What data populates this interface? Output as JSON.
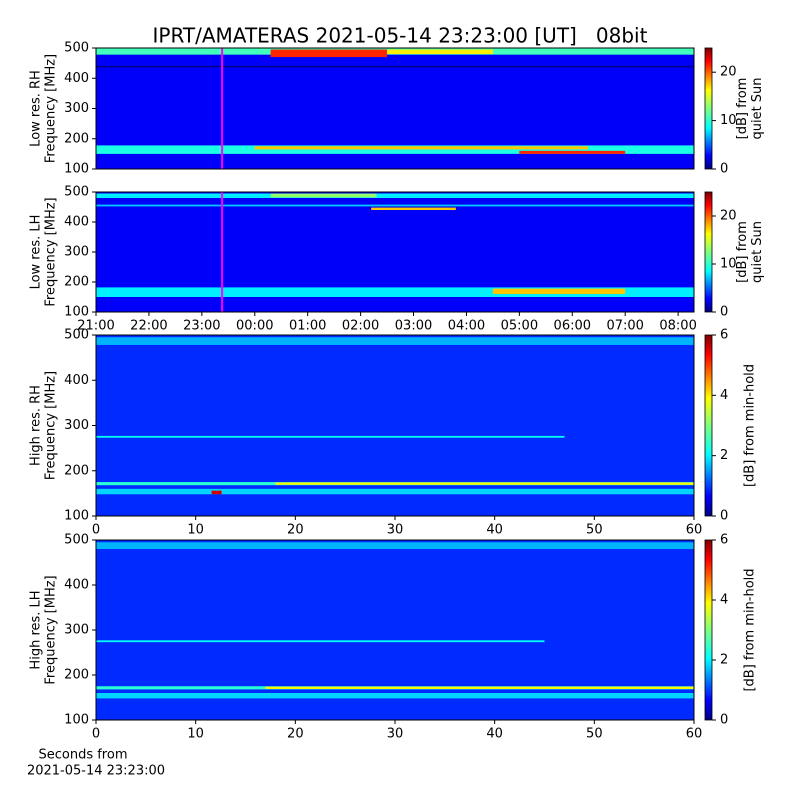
{
  "title": "IPRT/AMATERAS 2021-05-14 23:23:00 [UT]   08bit",
  "chart_data": [
    {
      "type": "heatmap",
      "ylabel": [
        "Low res. RH",
        "Frequency [MHz]"
      ],
      "cbar_label": [
        "[dB] from",
        "quiet Sun"
      ],
      "xlim": [
        21,
        32.3
      ],
      "ylim": [
        100,
        500
      ],
      "yticks": [
        100,
        200,
        300,
        400,
        500
      ],
      "clim": [
        0,
        25
      ],
      "cticks": [
        0,
        10,
        20
      ],
      "background": 3,
      "marker": 23.383,
      "marker_color": "#ff00ff",
      "bands": [
        {
          "x": [
            21,
            32.3
          ],
          "y": [
            478,
            500
          ],
          "value": 11
        },
        {
          "x": [
            24.3,
            26.5
          ],
          "y": [
            470,
            495
          ],
          "value": 21
        },
        {
          "x": [
            26.5,
            28.5
          ],
          "y": [
            480,
            495
          ],
          "value": 16
        },
        {
          "x": [
            21,
            32.3
          ],
          "y": [
            436,
            441
          ],
          "value": 0
        },
        {
          "x": [
            21,
            32.3
          ],
          "y": [
            150,
            178
          ],
          "value": 10
        },
        {
          "x": [
            24,
            30.3
          ],
          "y": [
            165,
            175
          ],
          "value": 17
        },
        {
          "x": [
            29,
            31
          ],
          "y": [
            150,
            160
          ],
          "value": 21
        }
      ]
    },
    {
      "type": "heatmap",
      "ylabel": [
        "Low res. LH",
        "Frequency [MHz]"
      ],
      "cbar_label": [
        "[dB] from",
        "quiet Sun"
      ],
      "xlim": [
        21,
        32.3
      ],
      "xticks": [
        {
          "value": 21,
          "label": "21:00"
        },
        {
          "value": 22,
          "label": "22:00"
        },
        {
          "value": 23,
          "label": "23:00"
        },
        {
          "value": 24,
          "label": "00:00"
        },
        {
          "value": 25,
          "label": "01:00"
        },
        {
          "value": 26,
          "label": "02:00"
        },
        {
          "value": 27,
          "label": "03:00"
        },
        {
          "value": 28,
          "label": "04:00"
        },
        {
          "value": 29,
          "label": "05:00"
        },
        {
          "value": 30,
          "label": "06:00"
        },
        {
          "value": 31,
          "label": "07:00"
        },
        {
          "value": 32,
          "label": "08:00"
        }
      ],
      "ylim": [
        100,
        500
      ],
      "yticks": [
        100,
        200,
        300,
        400,
        500
      ],
      "clim": [
        0,
        25
      ],
      "cticks": [
        0,
        10,
        20
      ],
      "background": 3,
      "marker": 23.383,
      "marker_color": "#ff00ff",
      "bands": [
        {
          "x": [
            21,
            32.3
          ],
          "y": [
            480,
            495
          ],
          "value": 9
        },
        {
          "x": [
            24.3,
            26.3
          ],
          "y": [
            482,
            495
          ],
          "value": 13
        },
        {
          "x": [
            21,
            32.3
          ],
          "y": [
            452,
            458
          ],
          "value": 8
        },
        {
          "x": [
            26.2,
            27.8
          ],
          "y": [
            440,
            448
          ],
          "value": 17
        },
        {
          "x": [
            21,
            32.3
          ],
          "y": [
            150,
            182
          ],
          "value": 9
        },
        {
          "x": [
            28.5,
            31
          ],
          "y": [
            160,
            178
          ],
          "value": 17
        }
      ]
    },
    {
      "type": "heatmap",
      "ylabel": [
        "High res. RH",
        "Frequency [MHz]"
      ],
      "cbar_label": [
        "[dB] from min-hold"
      ],
      "xlim": [
        0,
        60
      ],
      "xticks": [
        0,
        10,
        20,
        30,
        40,
        50,
        60
      ],
      "ylim": [
        100,
        500
      ],
      "yticks": [
        100,
        200,
        300,
        400,
        500
      ],
      "clim": [
        0,
        6
      ],
      "cticks": [
        0,
        2,
        4,
        6
      ],
      "background": 1,
      "bands": [
        {
          "x": [
            0,
            60
          ],
          "y": [
            478,
            495
          ],
          "value": 1.8
        },
        {
          "x": [
            0,
            47
          ],
          "y": [
            273,
            277
          ],
          "value": 2.3
        },
        {
          "x": [
            0,
            60
          ],
          "y": [
            168,
            175
          ],
          "value": 2.5
        },
        {
          "x": [
            18,
            60
          ],
          "y": [
            169,
            174
          ],
          "value": 3.8
        },
        {
          "x": [
            0,
            60
          ],
          "y": [
            148,
            160
          ],
          "value": 2
        },
        {
          "x": [
            11.6,
            12.6
          ],
          "y": [
            148,
            156
          ],
          "value": 5.5
        }
      ]
    },
    {
      "type": "heatmap",
      "ylabel": [
        "High res. LH",
        "Frequency [MHz]"
      ],
      "cbar_label": [
        "[dB] from min-hold"
      ],
      "xlabel": [
        "Seconds from",
        "2021-05-14 23:23:00"
      ],
      "xlim": [
        0,
        60
      ],
      "xticks": [
        0,
        10,
        20,
        30,
        40,
        50,
        60
      ],
      "ylim": [
        100,
        500
      ],
      "yticks": [
        100,
        200,
        300,
        400,
        500
      ],
      "clim": [
        0,
        6
      ],
      "cticks": [
        0,
        2,
        4,
        6
      ],
      "background": 1,
      "bands": [
        {
          "x": [
            0,
            60
          ],
          "y": [
            480,
            495
          ],
          "value": 1.8
        },
        {
          "x": [
            0,
            45
          ],
          "y": [
            273,
            277
          ],
          "value": 2.3
        },
        {
          "x": [
            0,
            60
          ],
          "y": [
            168,
            175
          ],
          "value": 2.5
        },
        {
          "x": [
            17,
            60
          ],
          "y": [
            169,
            174
          ],
          "value": 3.8
        },
        {
          "x": [
            0,
            60
          ],
          "y": [
            148,
            160
          ],
          "value": 2
        }
      ]
    }
  ]
}
